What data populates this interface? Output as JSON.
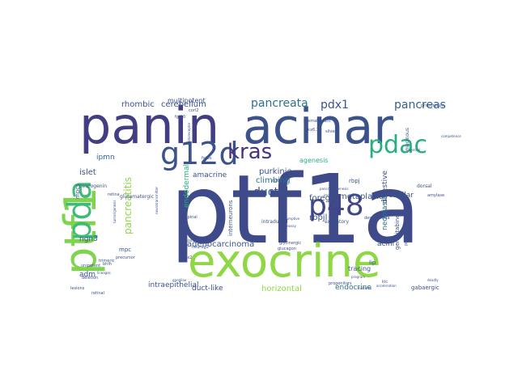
{
  "cloud": {
    "words": [
      {
        "text": "ptf1a",
        "color": "#3e4a89",
        "size": 118,
        "rot": 0
      },
      {
        "text": "panin",
        "color": "#433d84",
        "size": 62,
        "rot": 0
      },
      {
        "text": "acinar",
        "color": "#3b528b",
        "size": 60,
        "rot": 0
      },
      {
        "text": "exocrine",
        "color": "#8fd744",
        "size": 56,
        "rot": 0
      },
      {
        "text": "ptf1",
        "color": "#7fd34e",
        "size": 54,
        "rot": 270
      },
      {
        "text": "pda",
        "color": "#3cbb75",
        "size": 40,
        "rot": 270
      },
      {
        "text": "g12d",
        "color": "#3b528b",
        "size": 38,
        "rot": 0
      },
      {
        "text": "p48",
        "color": "#414487",
        "size": 36,
        "rot": 0
      },
      {
        "text": "pdac",
        "color": "#29af7f",
        "size": 30,
        "rot": 0
      },
      {
        "text": "kras",
        "color": "#46337e",
        "size": 26,
        "rot": 0
      },
      {
        "text": "pancreata",
        "color": "#2c728e",
        "size": 14,
        "rot": 0
      },
      {
        "text": "pdx1",
        "color": "#3b528b",
        "size": 14,
        "rot": 0
      },
      {
        "text": "pancreas",
        "color": "#33638d",
        "size": 14,
        "rot": 0
      },
      {
        "text": "rhombic",
        "color": "#3b528b",
        "size": 10,
        "rot": 0
      },
      {
        "text": "cerebellum",
        "color": "#3b528b",
        "size": 10,
        "rot": 0
      },
      {
        "text": "multipotent",
        "color": "#3b528b",
        "size": 8,
        "rot": 0
      },
      {
        "text": "pancreatitis",
        "color": "#8fd744",
        "size": 12,
        "rot": 270
      },
      {
        "text": "endodermal",
        "color": "#29af7f",
        "size": 9,
        "rot": 270
      },
      {
        "text": "ipmn",
        "color": "#33638d",
        "size": 9,
        "rot": 0
      },
      {
        "text": "ductal",
        "color": "#3b528b",
        "size": 14,
        "rot": 0
      },
      {
        "text": "metaplasia",
        "color": "#3b528b",
        "size": 10,
        "rot": 0
      },
      {
        "text": "purkinje",
        "color": "#3b528b",
        "size": 10,
        "rot": 0
      },
      {
        "text": "climbing",
        "color": "#2c728e",
        "size": 10,
        "rot": 0
      },
      {
        "text": "islet",
        "color": "#3b528b",
        "size": 10,
        "rot": 0
      },
      {
        "text": "amacrine",
        "color": "#3b528b",
        "size": 9,
        "rot": 0
      },
      {
        "text": "ngn3",
        "color": "#3b528b",
        "size": 9,
        "rot": 0
      },
      {
        "text": "adm",
        "color": "#3b528b",
        "size": 9,
        "rot": 0
      },
      {
        "text": "foregut",
        "color": "#3b528b",
        "size": 10,
        "rot": 0
      },
      {
        "text": "rbpjl",
        "color": "#3b528b",
        "size": 10,
        "rot": 0
      },
      {
        "text": "adenocarcinoma",
        "color": "#3b528b",
        "size": 10,
        "rot": 0
      },
      {
        "text": "intraepithelial",
        "color": "#3b528b",
        "size": 9,
        "rot": 0
      },
      {
        "text": "duct-like",
        "color": "#3b528b",
        "size": 9,
        "rot": 0
      },
      {
        "text": "horizontal",
        "color": "#8fd744",
        "size": 10,
        "rot": 0
      },
      {
        "text": "endocrine",
        "color": "#2c728e",
        "size": 9,
        "rot": 0
      },
      {
        "text": "gabaergic",
        "color": "#3b528b",
        "size": 7,
        "rot": 0
      },
      {
        "text": "neoplasia",
        "color": "#2c728e",
        "size": 9,
        "rot": 270
      },
      {
        "text": "digestive",
        "color": "#3b528b",
        "size": 9,
        "rot": 270
      },
      {
        "text": "cerebellar",
        "color": "#3b528b",
        "size": 9,
        "rot": 0
      },
      {
        "text": "acini",
        "color": "#3b528b",
        "size": 9,
        "rot": 0
      },
      {
        "text": "agenesis",
        "color": "#29af7f",
        "size": 8,
        "rot": 0
      },
      {
        "text": "interneurons",
        "color": "#3b528b",
        "size": 7,
        "rot": 270
      },
      {
        "text": "tracing",
        "color": "#3b528b",
        "size": 8,
        "rot": 0
      },
      {
        "text": "lip",
        "color": "#3b528b",
        "size": 7,
        "rot": 0
      },
      {
        "text": "gemcitabine",
        "color": "#3b528b",
        "size": 7,
        "rot": 270
      },
      {
        "text": "glutamatergic",
        "color": "#3b528b",
        "size": 6,
        "rot": 0
      },
      {
        "text": "mpc",
        "color": "#3b528b",
        "size": 7,
        "rot": 0
      },
      {
        "text": "intraductal",
        "color": "#3b528b",
        "size": 6,
        "rot": 0
      },
      {
        "text": "dorsal",
        "color": "#3b528b",
        "size": 6,
        "rot": 0
      },
      {
        "text": "mpcs",
        "color": "#3b528b",
        "size": 7,
        "rot": 270
      },
      {
        "text": "rbpj",
        "color": "#3b528b",
        "size": 7,
        "rot": 0
      },
      {
        "text": "excitatory",
        "color": "#3b528b",
        "size": 6,
        "rot": 0
      },
      {
        "text": "neurogenin",
        "color": "#3b528b",
        "size": 6,
        "rot": 0
      },
      {
        "text": "fgf10",
        "color": "#3b528b",
        "size": 5,
        "rot": 0
      },
      {
        "text": "fates",
        "color": "#3b528b",
        "size": 5,
        "rot": 0
      },
      {
        "text": "retina",
        "color": "#3b528b",
        "size": 5,
        "rot": 0
      },
      {
        "text": "spinal",
        "color": "#3b528b",
        "size": 5,
        "rot": 0
      },
      {
        "text": "cre",
        "color": "#3b528b",
        "size": 5,
        "rot": 0
      },
      {
        "text": "desmoplasia",
        "color": "#3b528b",
        "size": 5,
        "rot": 0
      },
      {
        "text": "glycinergic",
        "color": "#3b528b",
        "size": 5,
        "rot": 0
      },
      {
        "text": "glucagon",
        "color": "#3b528b",
        "size": 5,
        "rot": 0
      },
      {
        "text": "bhlh",
        "color": "#3b528b",
        "size": 5,
        "rot": 0
      },
      {
        "text": "precursor",
        "color": "#3b528b",
        "size": 5,
        "rot": 0
      },
      {
        "text": "unipotent",
        "color": "#3b528b",
        "size": 5,
        "rot": 0
      },
      {
        "text": "plexiform",
        "color": "#3b528b",
        "size": 5,
        "rot": 0
      },
      {
        "text": "preneoplastic",
        "color": "#3b528b",
        "size": 5,
        "rot": 270
      },
      {
        "text": "mucinous",
        "color": "#3b528b",
        "size": 6,
        "rot": 270
      },
      {
        "text": "premalignant",
        "color": "#3b528b",
        "size": 5,
        "rot": 0
      },
      {
        "text": "primordium",
        "color": "#3b528b",
        "size": 5,
        "rot": 0
      },
      {
        "text": "amylase",
        "color": "#3b528b",
        "size": 5,
        "rot": 0
      },
      {
        "text": "lesions",
        "color": "#3b528b",
        "size": 5,
        "rot": 0
      },
      {
        "text": "retinal",
        "color": "#3b528b",
        "size": 5,
        "rot": 0
      },
      {
        "text": "progenitors",
        "color": "#3b528b",
        "size": 5,
        "rot": 0
      },
      {
        "text": "trimeric",
        "color": "#3b528b",
        "size": 5,
        "rot": 0
      },
      {
        "text": "mist1",
        "color": "#3b528b",
        "size": 5,
        "rot": 0
      },
      {
        "text": "deletion",
        "color": "#3b528b",
        "size": 5,
        "rot": 0
      },
      {
        "text": "pdx2",
        "color": "#3b528b",
        "size": 5,
        "rot": 0
      },
      {
        "text": "kic",
        "color": "#3b528b",
        "size": 5,
        "rot": 0
      },
      {
        "text": "neurog2",
        "color": "#3b528b",
        "size": 5,
        "rot": 0
      },
      {
        "text": "gangliae",
        "color": "#3b528b",
        "size": 4,
        "rot": 0
      },
      {
        "text": "acceleration",
        "color": "#3b528b",
        "size": 4,
        "rot": 0
      },
      {
        "text": "corl2",
        "color": "#3b528b",
        "size": 5,
        "rot": 0
      },
      {
        "text": "notch",
        "color": "#3b528b",
        "size": 5,
        "rot": 0
      },
      {
        "text": "nkx6.1",
        "color": "#3b528b",
        "size": 5,
        "rot": 0
      },
      {
        "text": "silvery",
        "color": "#3b528b",
        "size": 5,
        "rot": 0
      },
      {
        "text": "pancreatogenesis",
        "color": "#3b528b",
        "size": 4,
        "rot": 0
      },
      {
        "text": "ventral",
        "color": "#3b528b",
        "size": 4,
        "rot": 0
      },
      {
        "text": "presumptive",
        "color": "#3b528b",
        "size": 4,
        "rot": 0
      },
      {
        "text": "competence",
        "color": "#3b528b",
        "size": 4,
        "rot": 0
      },
      {
        "text": "mossy",
        "color": "#3b528b",
        "size": 4,
        "rot": 0
      },
      {
        "text": "imaging",
        "color": "#3b528b",
        "size": 4,
        "rot": 0
      },
      {
        "text": "program",
        "color": "#3b528b",
        "size": 4,
        "rot": 0
      },
      {
        "text": "deadly",
        "color": "#3b528b",
        "size": 4,
        "rot": 0
      },
      {
        "text": "ductules",
        "color": "#3b528b",
        "size": 4,
        "rot": 0
      },
      {
        "text": "lineages",
        "color": "#3b528b",
        "size": 4,
        "rot": 0
      },
      {
        "text": "photoreceptor",
        "color": "#3b528b",
        "size": 4,
        "rot": 270
      },
      {
        "text": "tumorigenesis",
        "color": "#3b528b",
        "size": 4,
        "rot": 270
      },
      {
        "text": "neurotransmitter",
        "color": "#3b528b",
        "size": 4,
        "rot": 270
      }
    ]
  }
}
